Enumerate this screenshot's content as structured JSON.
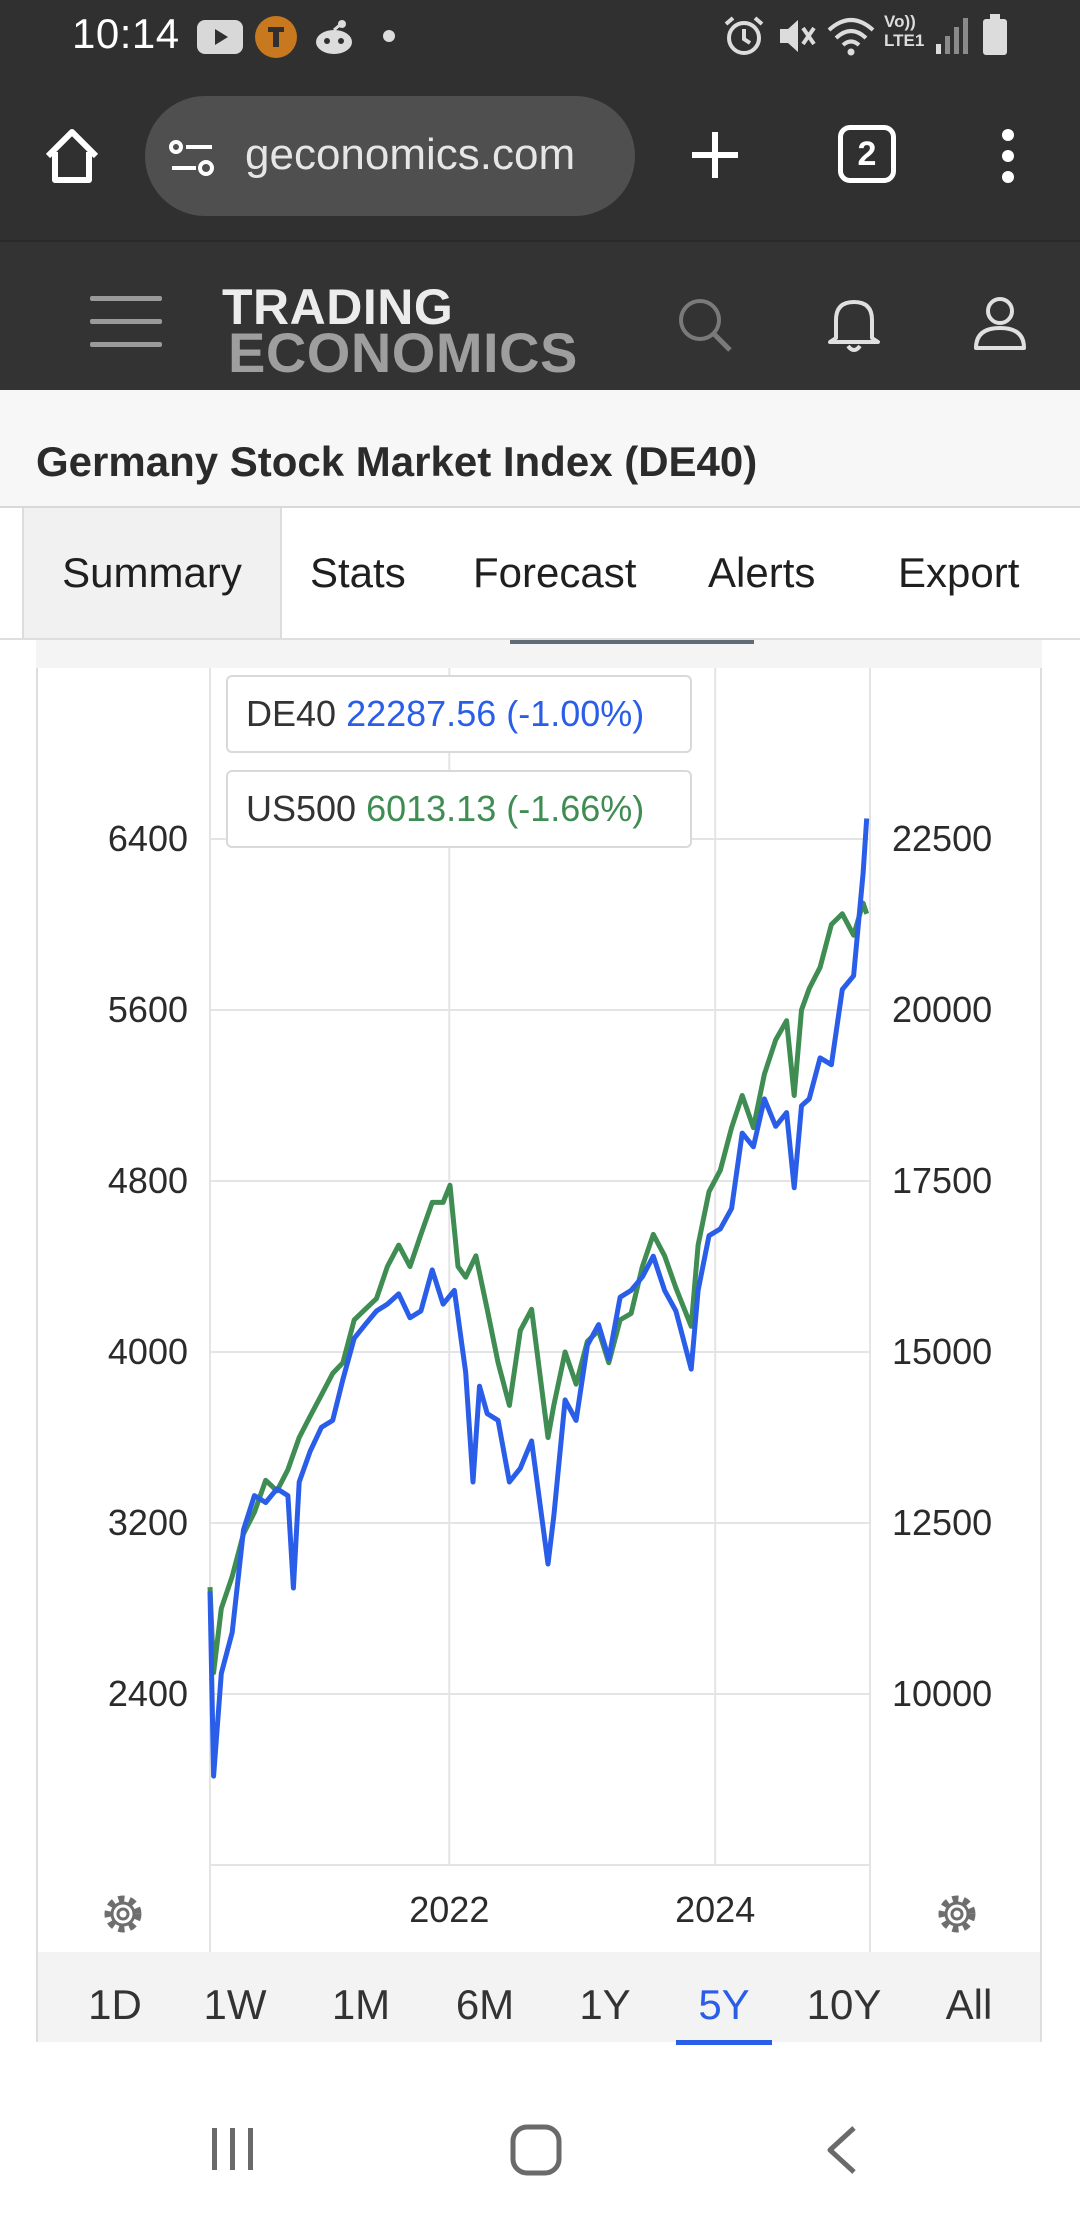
{
  "status_bar": {
    "time": "10:14",
    "icons": [
      "youtube-icon",
      "app-badge-icon",
      "reddit-icon",
      "dot-icon",
      "alarm-icon",
      "mute-icon",
      "wifi-icon",
      "volte-icon",
      "signal-icon",
      "battery-icon"
    ],
    "volte_label_top": "Vo))",
    "volte_label_bottom": "LTE1"
  },
  "browser": {
    "url": "geconomics.com",
    "tab_count": "2"
  },
  "site": {
    "logo_line1": "TRADING",
    "logo_line2": "ECONOMICS"
  },
  "page": {
    "title": "Germany Stock Market Index (DE40)"
  },
  "tabs": [
    {
      "label": "Summary",
      "active": true
    },
    {
      "label": "Stats"
    },
    {
      "label": "Forecast"
    },
    {
      "label": "Alerts"
    },
    {
      "label": "Export"
    }
  ],
  "legend": {
    "de40": {
      "name": "DE40",
      "value": "22287.56 (-1.00%)"
    },
    "us500": {
      "name": "US500",
      "value": "6013.13 (-1.66%)"
    }
  },
  "range_buttons": [
    {
      "label": "1D"
    },
    {
      "label": "1W"
    },
    {
      "label": "1M"
    },
    {
      "label": "6M"
    },
    {
      "label": "1Y"
    },
    {
      "label": "5Y",
      "active": true
    },
    {
      "label": "10Y"
    },
    {
      "label": "All"
    }
  ],
  "colors": {
    "de40": "#2a5ee8",
    "us500": "#3f8d52",
    "active_range": "#2a5ee8"
  },
  "chart_data": {
    "type": "line",
    "left_axis_ticks": [
      "6400",
      "5600",
      "4800",
      "4000",
      "3200",
      "2400"
    ],
    "right_axis_ticks": [
      "22500",
      "20000",
      "17500",
      "15000",
      "12500",
      "10000"
    ],
    "x_ticks": [
      "2022",
      "2024"
    ],
    "left_ylim": [
      1600,
      7200
    ],
    "right_ylim": [
      7500,
      25000
    ],
    "x_range": [
      "2020-03-15",
      "2025-03-01"
    ],
    "grid": true,
    "legend_position": "top-left",
    "series": [
      {
        "name": "DE40",
        "axis": "right",
        "x": [
          "2020-03-15",
          "2020-03-25",
          "2020-04-15",
          "2020-05-15",
          "2020-06-15",
          "2020-07-15",
          "2020-08-15",
          "2020-09-15",
          "2020-10-15",
          "2020-10-30",
          "2020-11-15",
          "2020-12-15",
          "2021-01-15",
          "2021-02-15",
          "2021-03-15",
          "2021-04-15",
          "2021-05-15",
          "2021-06-15",
          "2021-07-15",
          "2021-08-15",
          "2021-09-15",
          "2021-10-15",
          "2021-11-15",
          "2021-12-15",
          "2022-01-15",
          "2022-02-15",
          "2022-03-07",
          "2022-03-25",
          "2022-04-15",
          "2022-05-15",
          "2022-06-15",
          "2022-07-15",
          "2022-08-15",
          "2022-09-29",
          "2022-10-15",
          "2022-11-15",
          "2022-12-15",
          "2023-01-15",
          "2023-02-15",
          "2023-03-15",
          "2023-04-15",
          "2023-05-15",
          "2023-06-15",
          "2023-07-15",
          "2023-08-15",
          "2023-09-15",
          "2023-10-27",
          "2023-11-15",
          "2023-12-15",
          "2024-01-15",
          "2024-02-15",
          "2024-03-15",
          "2024-04-15",
          "2024-05-15",
          "2024-06-15",
          "2024-07-15",
          "2024-08-05",
          "2024-08-25",
          "2024-09-15",
          "2024-10-15",
          "2024-11-15",
          "2024-12-15",
          "2025-01-15",
          "2025-02-10",
          "2025-02-20"
        ],
        "values": [
          11500,
          8800,
          10300,
          10900,
          12400,
          12900,
          12800,
          13000,
          12900,
          11550,
          13100,
          13550,
          13900,
          14000,
          14600,
          15200,
          15400,
          15600,
          15700,
          15850,
          15500,
          15600,
          16200,
          15700,
          15900,
          14700,
          13100,
          14500,
          14100,
          14000,
          13100,
          13300,
          13700,
          11900,
          12600,
          14300,
          14000,
          15100,
          15400,
          14900,
          15800,
          15900,
          16100,
          16400,
          15900,
          15600,
          14750,
          15900,
          16700,
          16800,
          17100,
          18200,
          18000,
          18700,
          18300,
          18500,
          17400,
          18600,
          18700,
          19300,
          19200,
          20300,
          20500,
          22000,
          22800
        ]
      },
      {
        "name": "US500",
        "axis": "left",
        "x": [
          "2020-03-15",
          "2020-03-25",
          "2020-04-15",
          "2020-05-15",
          "2020-06-15",
          "2020-07-15",
          "2020-08-15",
          "2020-09-15",
          "2020-10-15",
          "2020-11-15",
          "2020-12-15",
          "2021-01-15",
          "2021-02-15",
          "2021-03-15",
          "2021-04-15",
          "2021-05-15",
          "2021-06-15",
          "2021-07-15",
          "2021-08-15",
          "2021-09-15",
          "2021-10-15",
          "2021-11-15",
          "2021-12-15",
          "2022-01-03",
          "2022-01-25",
          "2022-02-15",
          "2022-03-15",
          "2022-04-15",
          "2022-05-15",
          "2022-06-15",
          "2022-07-15",
          "2022-08-15",
          "2022-09-29",
          "2022-10-15",
          "2022-11-15",
          "2022-12-15",
          "2023-01-15",
          "2023-02-15",
          "2023-03-15",
          "2023-04-15",
          "2023-05-15",
          "2023-06-15",
          "2023-07-15",
          "2023-08-15",
          "2023-09-15",
          "2023-10-27",
          "2023-11-15",
          "2023-12-15",
          "2024-01-15",
          "2024-02-15",
          "2024-03-15",
          "2024-04-15",
          "2024-05-15",
          "2024-06-15",
          "2024-07-15",
          "2024-08-05",
          "2024-08-25",
          "2024-09-15",
          "2024-10-15",
          "2024-11-15",
          "2024-12-15",
          "2025-01-15",
          "2025-02-10",
          "2025-02-20"
        ],
        "values": [
          2900,
          2500,
          2800,
          2950,
          3150,
          3250,
          3400,
          3350,
          3450,
          3600,
          3700,
          3800,
          3900,
          3950,
          4150,
          4200,
          4250,
          4400,
          4500,
          4400,
          4550,
          4700,
          4700,
          4780,
          4400,
          4350,
          4450,
          4200,
          3950,
          3750,
          4100,
          4200,
          3600,
          3750,
          4000,
          3850,
          4050,
          4100,
          3950,
          4150,
          4180,
          4400,
          4550,
          4450,
          4300,
          4120,
          4500,
          4750,
          4850,
          5050,
          5200,
          5050,
          5300,
          5460,
          5550,
          5200,
          5600,
          5700,
          5800,
          6000,
          6050,
          5950,
          6100,
          6050
        ]
      }
    ]
  }
}
